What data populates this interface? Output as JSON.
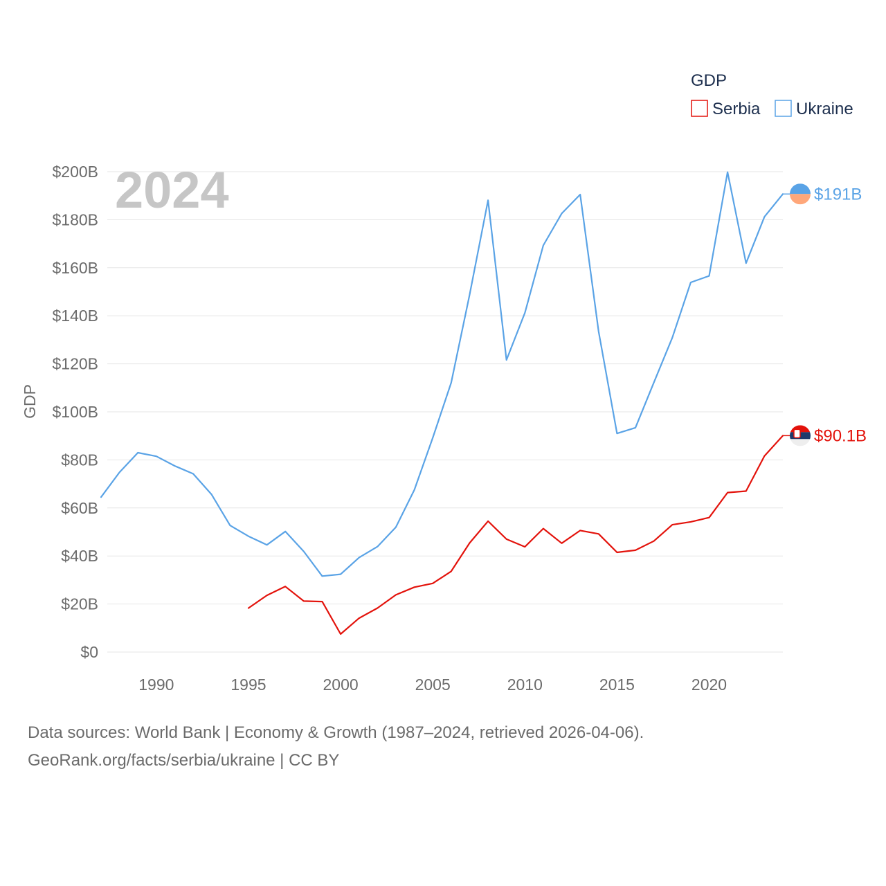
{
  "chart_data": {
    "type": "line",
    "title": "GDP",
    "ylabel": "GDP",
    "xlabel": "",
    "year_label": "2024",
    "xlim": [
      1987,
      2024
    ],
    "ylim": [
      0,
      200
    ],
    "x_ticks": [
      1990,
      1995,
      2000,
      2005,
      2010,
      2015,
      2020
    ],
    "y_ticks": [
      {
        "value": 0,
        "label": "$0"
      },
      {
        "value": 20,
        "label": "$20B"
      },
      {
        "value": 40,
        "label": "$40B"
      },
      {
        "value": 60,
        "label": "$60B"
      },
      {
        "value": 80,
        "label": "$80B"
      },
      {
        "value": 100,
        "label": "$100B"
      },
      {
        "value": 120,
        "label": "$120B"
      },
      {
        "value": 140,
        "label": "$140B"
      },
      {
        "value": 160,
        "label": "$160B"
      },
      {
        "value": 180,
        "label": "$180B"
      },
      {
        "value": 200,
        "label": "$200B"
      }
    ],
    "legend": {
      "title": "GDP",
      "placement": "top-right"
    },
    "series": [
      {
        "name": "Serbia",
        "color": "#e3120b",
        "end_label": "$90.1B",
        "flag_icon": "serbia-flag-icon",
        "x": [
          1995,
          1996,
          1997,
          1998,
          1999,
          2000,
          2001,
          2002,
          2003,
          2004,
          2005,
          2006,
          2007,
          2008,
          2009,
          2010,
          2011,
          2012,
          2013,
          2014,
          2015,
          2016,
          2017,
          2018,
          2019,
          2020,
          2021,
          2022,
          2023,
          2024
        ],
        "values": [
          18.3,
          23.6,
          27.3,
          21.2,
          21.0,
          7.5,
          14.1,
          18.3,
          23.8,
          27.0,
          28.6,
          33.6,
          45.4,
          54.5,
          47.0,
          43.8,
          51.4,
          45.3,
          50.6,
          49.2,
          41.5,
          42.4,
          46.2,
          53.0,
          54.2,
          56.0,
          66.4,
          67.0,
          81.6,
          90.1
        ]
      },
      {
        "name": "Ukraine",
        "color": "#5aa3e6",
        "end_label": "$191B",
        "flag_icon": "ukraine-flag-icon",
        "x": [
          1987,
          1988,
          1989,
          1990,
          1991,
          1992,
          1993,
          1994,
          1995,
          1996,
          1997,
          1998,
          1999,
          2000,
          2001,
          2002,
          2003,
          2004,
          2005,
          2006,
          2007,
          2008,
          2009,
          2010,
          2011,
          2012,
          2013,
          2014,
          2015,
          2016,
          2017,
          2018,
          2019,
          2020,
          2021,
          2022,
          2023,
          2024
        ],
        "values": [
          64.5,
          74.8,
          83.0,
          81.5,
          77.5,
          74.2,
          65.6,
          52.7,
          48.2,
          44.6,
          50.2,
          41.9,
          31.6,
          32.4,
          39.3,
          43.9,
          52.0,
          67.5,
          89.2,
          112.1,
          148.7,
          188.1,
          121.6,
          141.2,
          169.3,
          182.6,
          190.5,
          133.5,
          91.0,
          93.4,
          112.2,
          130.9,
          153.9,
          156.6,
          199.8,
          161.9,
          181.2,
          190.7
        ]
      }
    ]
  },
  "footer": {
    "line1": "Data sources: World Bank | Economy & Growth (1987–2024, retrieved 2026-04-06).",
    "line2": "GeoRank.org/facts/serbia/ukraine | CC BY"
  }
}
